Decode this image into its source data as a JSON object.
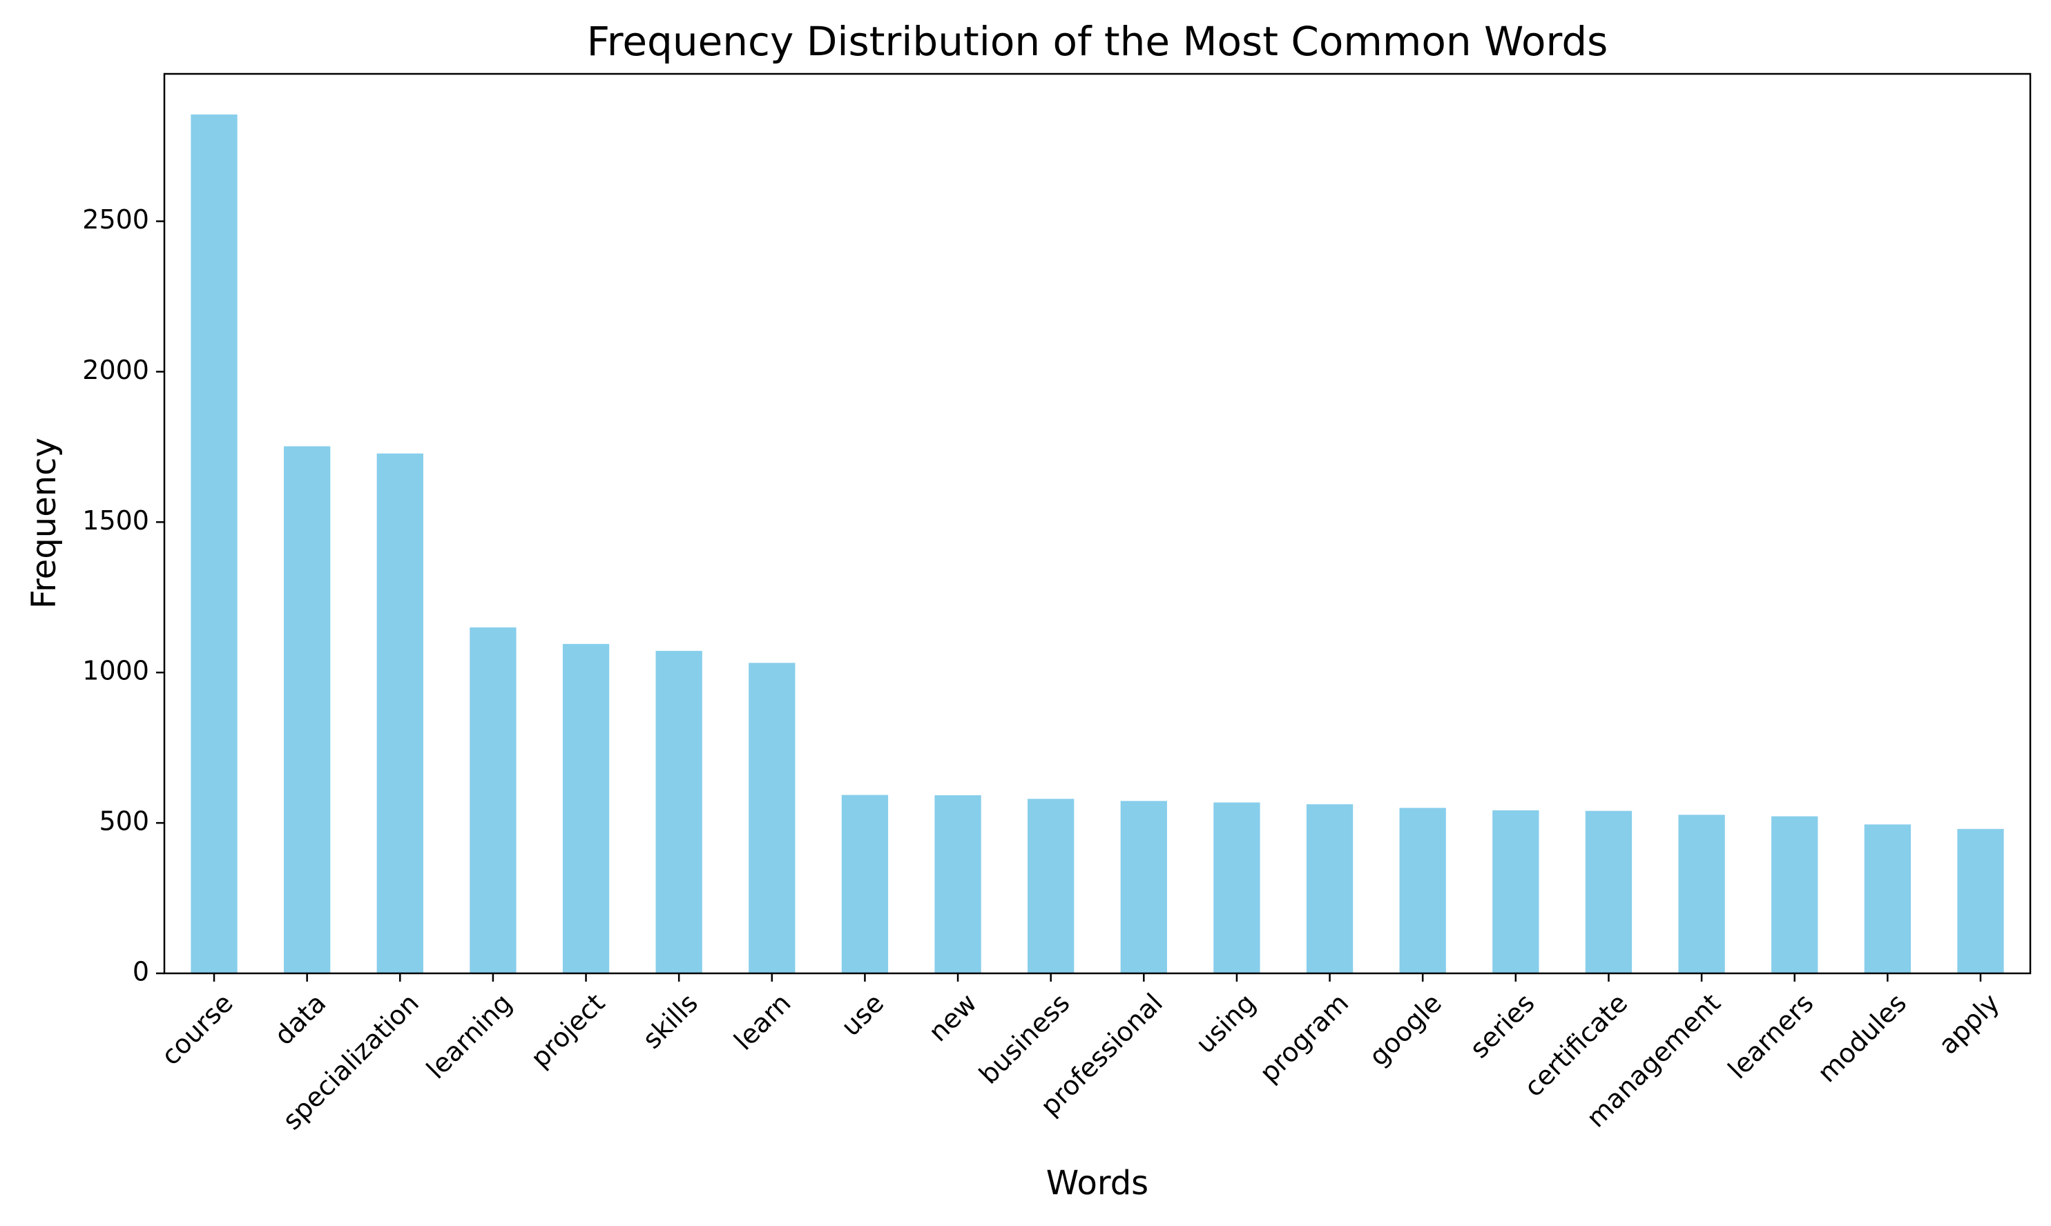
{
  "chart_data": {
    "type": "bar",
    "title": "Frequency Distribution of the Most Common Words",
    "xlabel": "Words",
    "ylabel": "Frequency",
    "categories": [
      "course",
      "data",
      "specialization",
      "learning",
      "project",
      "skills",
      "learn",
      "use",
      "new",
      "business",
      "professional",
      "using",
      "program",
      "google",
      "series",
      "certificate",
      "management",
      "learners",
      "modules",
      "apply"
    ],
    "values": [
      2855,
      1752,
      1728,
      1150,
      1095,
      1072,
      1032,
      593,
      592,
      580,
      573,
      568,
      562,
      550,
      542,
      540,
      527,
      522,
      495,
      480
    ],
    "ylim": [
      0,
      2990
    ],
    "yticks": [
      0,
      500,
      1000,
      1500,
      2000,
      2500
    ],
    "grid": false,
    "legend": "none",
    "bar_color": "#87ceeb"
  }
}
